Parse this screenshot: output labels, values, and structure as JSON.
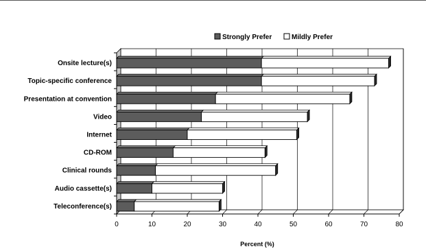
{
  "chart_data": {
    "type": "bar",
    "orientation": "horizontal",
    "stacked": true,
    "style": "3d",
    "categories": [
      "Onsite lecture(s)",
      "Topic-specific conference",
      "Presentation at convention",
      "Video",
      "Internet",
      "CD-ROM",
      "Clinical rounds",
      "Audio cassette(s)",
      "Teleconference(s)"
    ],
    "series": [
      {
        "name": "Strongly Prefer",
        "color": "#5c5c5c",
        "values": [
          41,
          41,
          28,
          24,
          20,
          16,
          11,
          10,
          5
        ]
      },
      {
        "name": "Mildly Prefer",
        "color": "#ffffff",
        "values": [
          36,
          32,
          38,
          30,
          31,
          26,
          34,
          20,
          24
        ]
      }
    ],
    "xlabel": "Percent (%)",
    "ylabel": "",
    "xlim": [
      0,
      80
    ],
    "xticks": [
      0,
      10,
      20,
      30,
      40,
      50,
      60,
      70,
      80
    ],
    "grid": true,
    "legend_position": "top-right"
  }
}
